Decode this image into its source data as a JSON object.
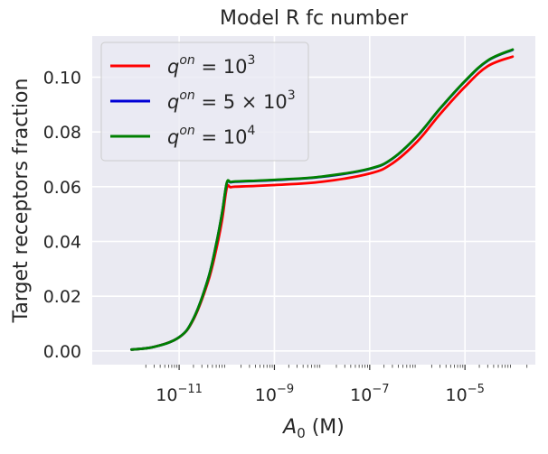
{
  "chart_data": {
    "type": "line",
    "title": "Model R fc number",
    "xlabel_main": "A",
    "xlabel_sub": "0",
    "xlabel_unit": " (M)",
    "ylabel": "Target receptors fraction",
    "x_scale": "log",
    "xlim": [
      1.5e-13,
      0.0003
    ],
    "ylim": [
      -0.005,
      0.115
    ],
    "grid": true,
    "legend_position": "top-left",
    "x_ticks": [
      {
        "value": 1e-11,
        "base": "10",
        "exp": "−11"
      },
      {
        "value": 1e-09,
        "base": "10",
        "exp": "−9"
      },
      {
        "value": 1e-07,
        "base": "10",
        "exp": "−7"
      },
      {
        "value": 1e-05,
        "base": "10",
        "exp": "−5"
      }
    ],
    "y_ticks": [
      {
        "value": 0.0,
        "label": "0.00"
      },
      {
        "value": 0.02,
        "label": "0.02"
      },
      {
        "value": 0.04,
        "label": "0.04"
      },
      {
        "value": 0.06,
        "label": "0.06"
      },
      {
        "value": 0.08,
        "label": "0.08"
      },
      {
        "value": 0.1,
        "label": "0.10"
      }
    ],
    "x": [
      1e-12,
      3e-12,
      1e-11,
      2e-11,
      4e-11,
      6e-11,
      8e-11,
      1e-10,
      1.2e-10,
      1.5e-10,
      3e-10,
      1e-09,
      1e-08,
      1e-07,
      3e-07,
      1e-06,
      3e-06,
      1e-05,
      3e-05,
      0.0001
    ],
    "series": [
      {
        "legend_main": "q",
        "legend_sup": "on",
        "legend_rest": " = 10",
        "legend_rest_sup": "3",
        "color": "#ff0000",
        "values": [
          0.0005,
          0.0015,
          0.005,
          0.0115,
          0.025,
          0.037,
          0.048,
          0.0595,
          0.0598,
          0.06,
          0.0602,
          0.0606,
          0.0618,
          0.0648,
          0.0685,
          0.0765,
          0.0865,
          0.0965,
          0.104,
          0.1075
        ]
      },
      {
        "legend_main": "q",
        "legend_sup": "on",
        "legend_rest": " = 5 × 10",
        "legend_rest_sup": "3",
        "color": "#0000d6",
        "values": [
          0.0005,
          0.0015,
          0.005,
          0.0118,
          0.026,
          0.039,
          0.0505,
          0.0612,
          0.0616,
          0.0618,
          0.062,
          0.0624,
          0.0636,
          0.0665,
          0.0702,
          0.0785,
          0.0885,
          0.0985,
          0.106,
          0.11
        ]
      },
      {
        "legend_main": "q",
        "legend_sup": "on",
        "legend_rest": " = 10",
        "legend_rest_sup": "4",
        "color": "#008000",
        "values": [
          0.0005,
          0.0015,
          0.005,
          0.0118,
          0.026,
          0.039,
          0.0506,
          0.0614,
          0.0617,
          0.0619,
          0.0621,
          0.0625,
          0.0637,
          0.0666,
          0.0703,
          0.0786,
          0.0886,
          0.0986,
          0.1061,
          0.1101
        ]
      }
    ]
  }
}
